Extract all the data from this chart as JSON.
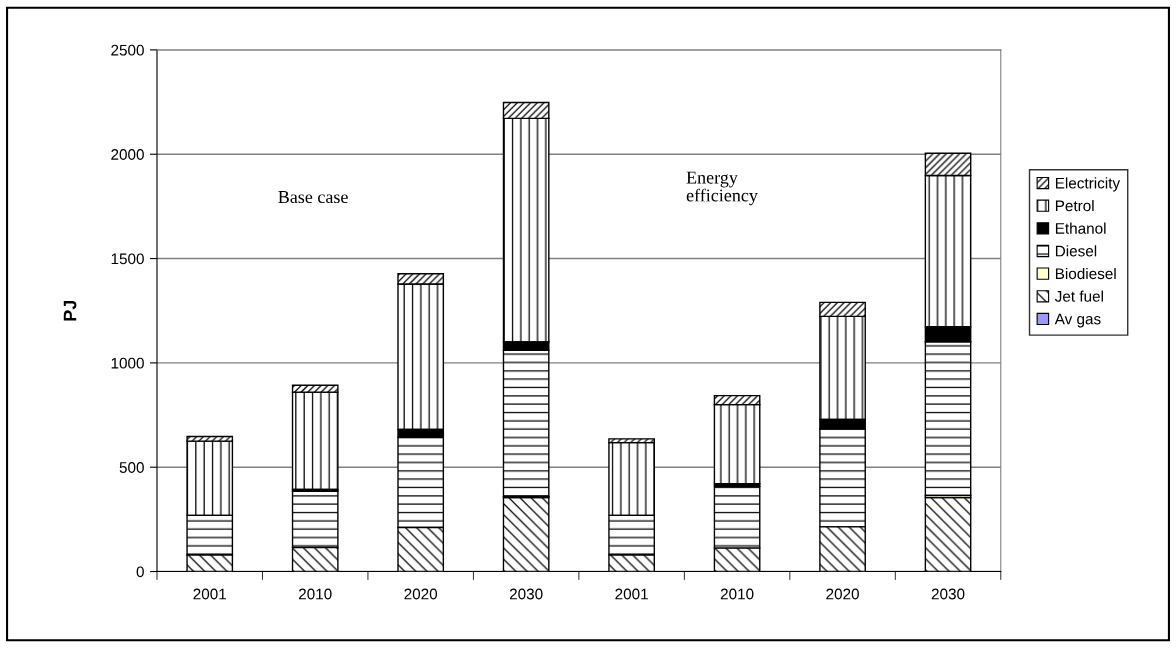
{
  "chart_data": {
    "type": "bar",
    "stacked": true,
    "ylabel": "PJ",
    "categories": [
      "2001",
      "2010",
      "2020",
      "2030",
      "2001",
      "2010",
      "2020",
      "2030"
    ],
    "series": [
      {
        "name": "Av gas",
        "color": "#9999ff",
        "values": [
          0,
          0,
          0,
          0,
          0,
          0,
          0,
          0
        ]
      },
      {
        "name": "Jet fuel",
        "color": "#000000",
        "values": [
          79,
          115,
          211,
          355,
          79,
          112,
          214,
          355
        ]
      },
      {
        "name": "Biodiesel",
        "color": "#ffffcc",
        "values": [
          0,
          0,
          0,
          5,
          0,
          0,
          0,
          10
        ]
      },
      {
        "name": "Diesel",
        "color": "#000000",
        "values": [
          190,
          270,
          434,
          700,
          190,
          296,
          470,
          736
        ]
      },
      {
        "name": "Ethanol",
        "color": "#000000",
        "values": [
          0,
          8,
          36,
          40,
          0,
          13,
          45,
          72
        ]
      },
      {
        "name": "Petrol",
        "color": "#000000",
        "values": [
          356,
          467,
          697,
          1072,
          349,
          379,
          494,
          725
        ]
      },
      {
        "name": "Electricity",
        "color": "#000000",
        "values": [
          22,
          33,
          49,
          76,
          18,
          43,
          67,
          107
        ]
      }
    ],
    "ylim": [
      0,
      2500
    ],
    "yticks": [
      0,
      500,
      1000,
      1500,
      2000,
      2500
    ],
    "grid": "y",
    "legend": "right",
    "annotations": [
      "Base case",
      "Energy\nefficiency"
    ]
  }
}
